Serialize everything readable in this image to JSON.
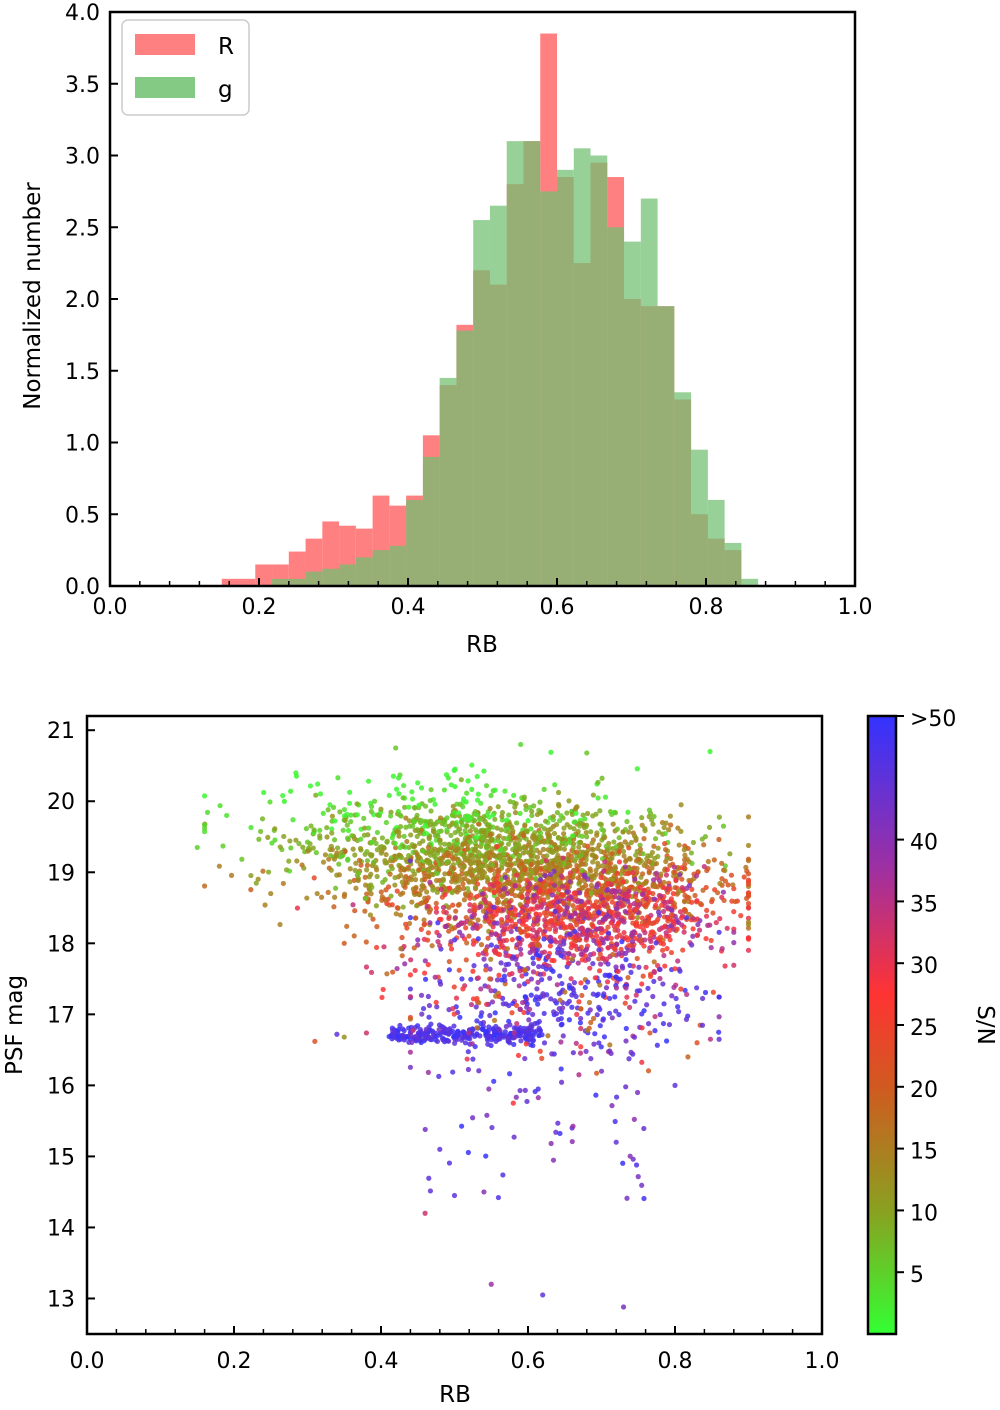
{
  "chart_data": [
    {
      "type": "bar",
      "subtype": "histogram",
      "xlabel": "RB",
      "ylabel": "Normalized number",
      "xlim": [
        0.0,
        1.0
      ],
      "ylim": [
        0.0,
        4.0
      ],
      "x_ticks": [
        "0.0",
        "0.2",
        "0.4",
        "0.6",
        "0.8",
        "1.0"
      ],
      "y_ticks": [
        "0.0",
        "0.5",
        "1.0",
        "1.5",
        "2.0",
        "2.5",
        "3.0",
        "3.5",
        "4.0"
      ],
      "legend": {
        "position": "top-left",
        "entries": [
          "R",
          "g"
        ]
      },
      "bin_width": 0.0225,
      "series": [
        {
          "name": "R",
          "color": "#ff8080",
          "bins_start": [
            0.15,
            0.1725,
            0.195,
            0.2175,
            0.24,
            0.2625,
            0.285,
            0.3075,
            0.33,
            0.3525,
            0.375,
            0.3975,
            0.42,
            0.4425,
            0.465,
            0.4875,
            0.51,
            0.5325,
            0.555,
            0.5775,
            0.6,
            0.6225,
            0.645,
            0.6675,
            0.69,
            0.7125,
            0.735,
            0.7575,
            0.78,
            0.8025,
            0.825,
            0.8475,
            0.87
          ],
          "values": [
            0.05,
            0.05,
            0.15,
            0.15,
            0.24,
            0.33,
            0.45,
            0.42,
            0.4,
            0.63,
            0.56,
            0.63,
            1.05,
            1.4,
            1.82,
            2.2,
            2.1,
            2.8,
            3.1,
            3.85,
            2.85,
            2.25,
            2.95,
            2.85,
            2.0,
            1.95,
            1.95,
            1.3,
            0.5,
            0.33,
            0.25,
            0.0,
            0.0
          ]
        },
        {
          "name": "g",
          "color": "#6fbf6f",
          "bins_start": [
            0.15,
            0.1725,
            0.195,
            0.2175,
            0.24,
            0.2625,
            0.285,
            0.3075,
            0.33,
            0.3525,
            0.375,
            0.3975,
            0.42,
            0.4425,
            0.465,
            0.4875,
            0.51,
            0.5325,
            0.555,
            0.5775,
            0.6,
            0.6225,
            0.645,
            0.6675,
            0.69,
            0.7125,
            0.735,
            0.7575,
            0.78,
            0.8025,
            0.825,
            0.8475,
            0.87
          ],
          "values": [
            0.0,
            0.0,
            0.0,
            0.05,
            0.05,
            0.1,
            0.12,
            0.15,
            0.2,
            0.25,
            0.28,
            0.6,
            0.9,
            1.45,
            1.78,
            2.55,
            2.65,
            3.1,
            3.1,
            2.75,
            2.9,
            3.05,
            3.0,
            2.5,
            2.4,
            2.7,
            1.95,
            1.35,
            0.95,
            0.6,
            0.3,
            0.05,
            0.0
          ]
        }
      ]
    },
    {
      "type": "scatter",
      "xlabel": "RB",
      "ylabel": "PSF mag",
      "xlim": [
        0.0,
        1.0
      ],
      "ylim": [
        12.5,
        21.2
      ],
      "x_ticks": [
        "0.0",
        "0.2",
        "0.4",
        "0.6",
        "0.8",
        "1.0"
      ],
      "y_ticks": [
        "13",
        "14",
        "15",
        "16",
        "17",
        "18",
        "19",
        "20",
        "21"
      ],
      "colorbar": {
        "label": "S/N",
        "range": [
          0,
          50
        ],
        "colors": [
          "#33ff33",
          "#ff3333",
          "#3333ff"
        ],
        "ticks": [
          "5",
          "10",
          "15",
          "20",
          "25",
          "30",
          "35",
          "40",
          ">50"
        ]
      },
      "sample_points": [
        {
          "x": 0.15,
          "y": 19.35,
          "sn": 5
        },
        {
          "x": 0.19,
          "y": 19.8,
          "sn": 3
        },
        {
          "x": 0.25,
          "y": 18.7,
          "sn": 14
        },
        {
          "x": 0.31,
          "y": 16.62,
          "sn": 22
        },
        {
          "x": 0.34,
          "y": 16.72,
          "sn": 45
        },
        {
          "x": 0.35,
          "y": 16.68,
          "sn": 12
        },
        {
          "x": 0.35,
          "y": 18.0,
          "sn": 20
        },
        {
          "x": 0.42,
          "y": 20.75,
          "sn": 6
        },
        {
          "x": 0.59,
          "y": 20.8,
          "sn": 4
        },
        {
          "x": 0.68,
          "y": 20.68,
          "sn": 6
        },
        {
          "x": 0.9,
          "y": 18.7,
          "sn": 22
        },
        {
          "x": 0.46,
          "y": 14.2,
          "sn": 33
        },
        {
          "x": 0.5,
          "y": 14.45,
          "sn": 45
        },
        {
          "x": 0.54,
          "y": 14.5,
          "sn": 40
        },
        {
          "x": 0.55,
          "y": 13.2,
          "sn": 38
        },
        {
          "x": 0.62,
          "y": 13.05,
          "sn": 45
        },
        {
          "x": 0.73,
          "y": 12.88,
          "sn": 42
        },
        {
          "x": 0.48,
          "y": 15.1,
          "sn": 45
        },
        {
          "x": 0.58,
          "y": 15.75,
          "sn": 28
        },
        {
          "x": 0.66,
          "y": 15.4,
          "sn": 45
        },
        {
          "x": 0.72,
          "y": 15.2,
          "sn": 45
        },
        {
          "x": 0.8,
          "y": 16.0,
          "sn": 45
        },
        {
          "x": 0.83,
          "y": 16.6,
          "sn": 22
        }
      ]
    }
  ]
}
